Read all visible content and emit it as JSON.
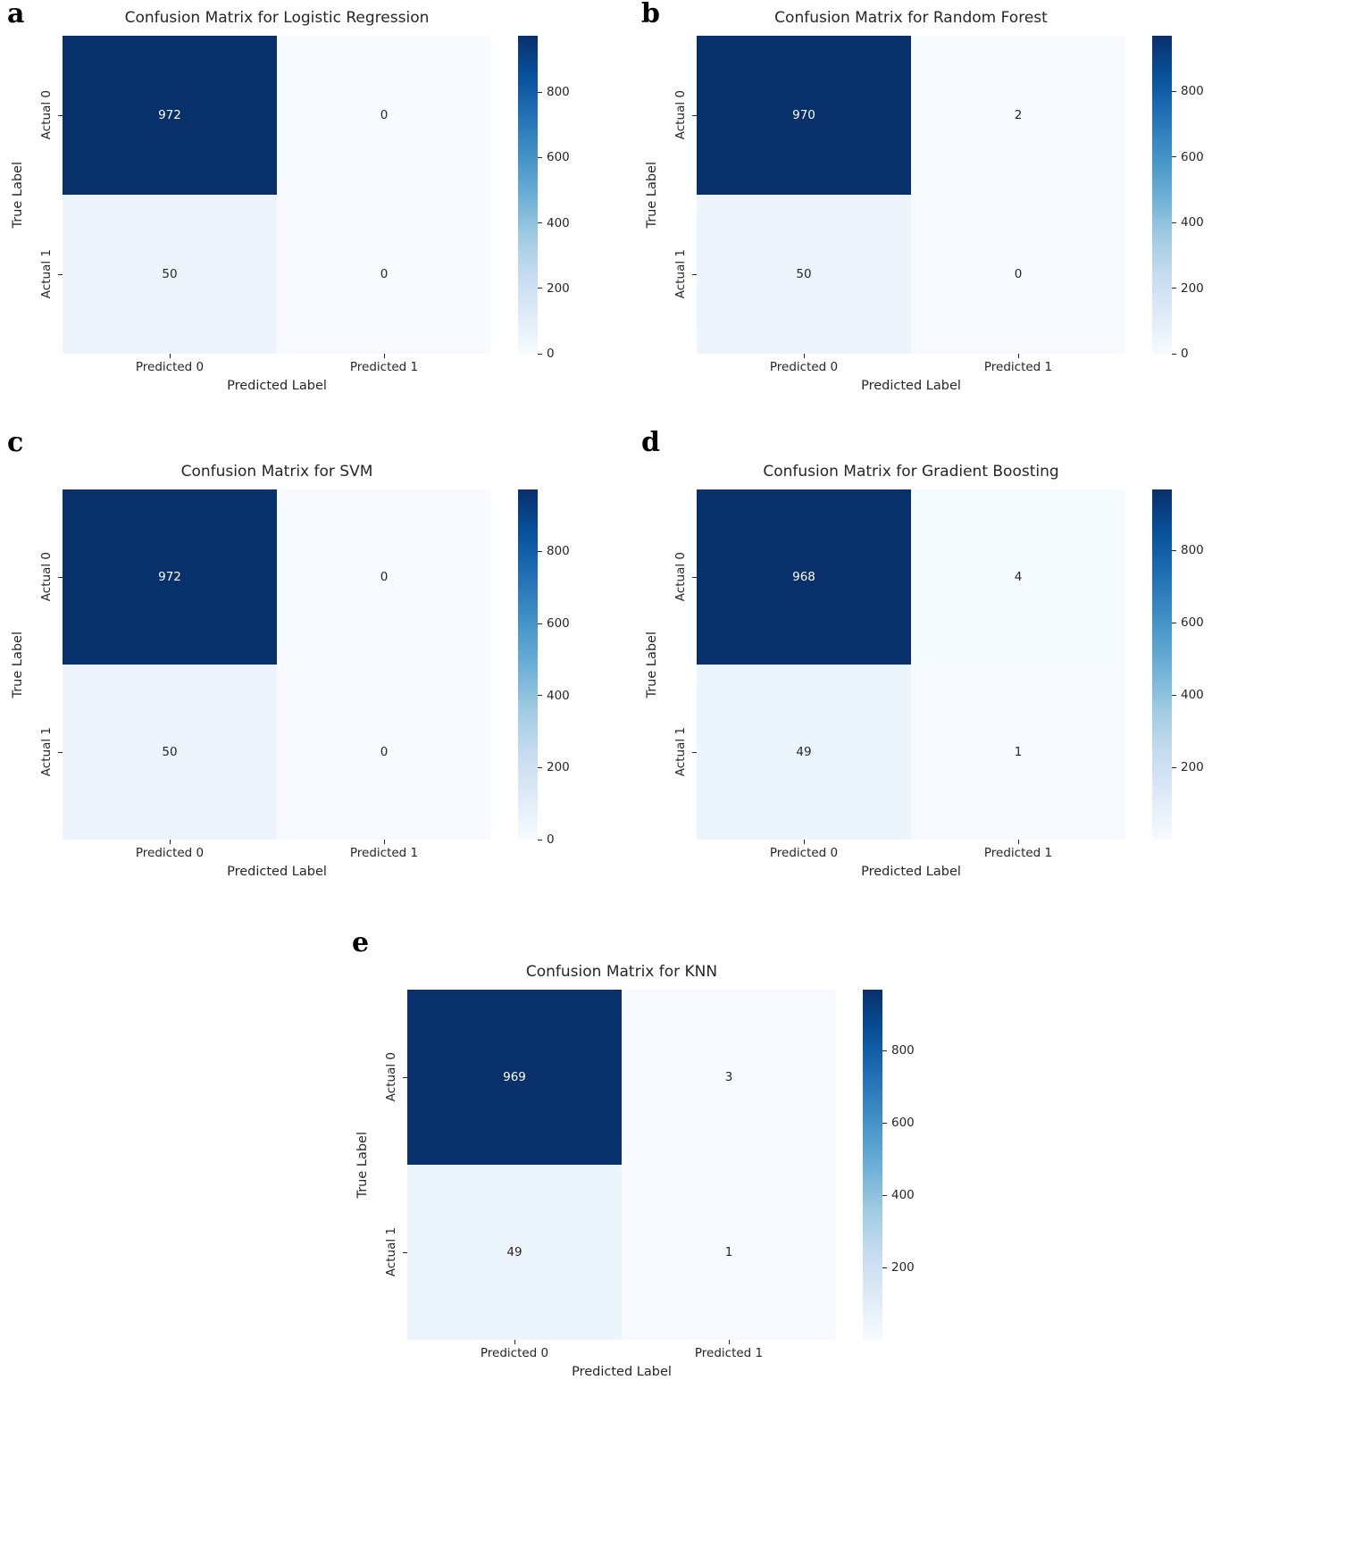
{
  "colors": {
    "colormap_dark": "#08306b",
    "colormap_light": "#f7fbff",
    "text": "#262626",
    "cell_text_on_dark": "#ffffff",
    "background": "#ffffff",
    "blues_stops": [
      "#f7fbff",
      "#deebf7",
      "#c6dbef",
      "#9ecae1",
      "#6baed6",
      "#4292c6",
      "#2171b5",
      "#08519c",
      "#08306b"
    ]
  },
  "chart_data": [
    {
      "type": "heatmap",
      "panel": "a",
      "title": "Confusion Matrix for Logistic Regression",
      "xlabel": "Predicted Label",
      "ylabel": "True Label",
      "x_categories": [
        "Predicted 0",
        "Predicted 1"
      ],
      "y_categories": [
        "Actual 0",
        "Actual 1"
      ],
      "matrix": [
        [
          972,
          0
        ],
        [
          50,
          0
        ]
      ],
      "vmin": 0,
      "vmax": 972,
      "colorbar_ticks": [
        0,
        200,
        400,
        600,
        800
      ],
      "colormap": "Blues",
      "legend_position": "right-colorbar",
      "grid": false
    },
    {
      "type": "heatmap",
      "panel": "b",
      "title": "Confusion Matrix for Random Forest",
      "xlabel": "Predicted Label",
      "ylabel": "True Label",
      "x_categories": [
        "Predicted 0",
        "Predicted 1"
      ],
      "y_categories": [
        "Actual 0",
        "Actual 1"
      ],
      "matrix": [
        [
          970,
          2
        ],
        [
          50,
          0
        ]
      ],
      "vmin": 0,
      "vmax": 970,
      "colorbar_ticks": [
        0,
        200,
        400,
        600,
        800
      ],
      "colormap": "Blues",
      "legend_position": "right-colorbar",
      "grid": false
    },
    {
      "type": "heatmap",
      "panel": "c",
      "title": "Confusion Matrix for SVM",
      "xlabel": "Predicted Label",
      "ylabel": "True Label",
      "x_categories": [
        "Predicted 0",
        "Predicted 1"
      ],
      "y_categories": [
        "Actual 0",
        "Actual 1"
      ],
      "matrix": [
        [
          972,
          0
        ],
        [
          50,
          0
        ]
      ],
      "vmin": 0,
      "vmax": 972,
      "colorbar_ticks": [
        0,
        200,
        400,
        600,
        800
      ],
      "colormap": "Blues",
      "legend_position": "right-colorbar",
      "grid": false
    },
    {
      "type": "heatmap",
      "panel": "d",
      "title": "Confusion Matrix for Gradient Boosting",
      "xlabel": "Predicted Label",
      "ylabel": "True Label",
      "x_categories": [
        "Predicted 0",
        "Predicted 1"
      ],
      "y_categories": [
        "Actual 0",
        "Actual 1"
      ],
      "matrix": [
        [
          968,
          4
        ],
        [
          49,
          1
        ]
      ],
      "vmin": 1,
      "vmax": 968,
      "colorbar_ticks": [
        200,
        400,
        600,
        800
      ],
      "colormap": "Blues",
      "legend_position": "right-colorbar",
      "grid": false
    },
    {
      "type": "heatmap",
      "panel": "e",
      "title": "Confusion Matrix for KNN",
      "xlabel": "Predicted Label",
      "ylabel": "True Label",
      "x_categories": [
        "Predicted 0",
        "Predicted 1"
      ],
      "y_categories": [
        "Actual 0",
        "Actual 1"
      ],
      "matrix": [
        [
          969,
          3
        ],
        [
          49,
          1
        ]
      ],
      "vmin": 1,
      "vmax": 969,
      "colorbar_ticks": [
        200,
        400,
        600,
        800
      ],
      "colormap": "Blues",
      "legend_position": "right-colorbar",
      "grid": false
    }
  ]
}
